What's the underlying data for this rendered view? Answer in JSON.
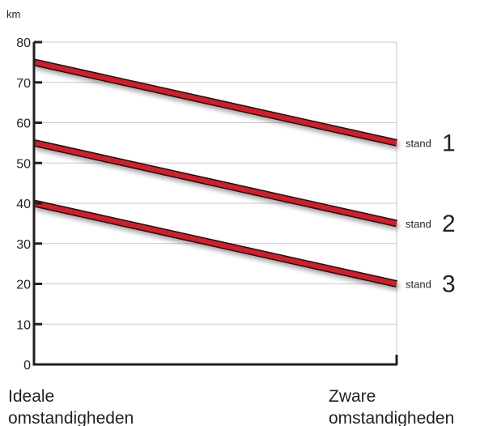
{
  "chart_data": {
    "type": "line",
    "ylabel": "km",
    "ylim": [
      0,
      80
    ],
    "yticks": [
      0,
      10,
      20,
      30,
      40,
      50,
      60,
      70,
      80
    ],
    "grid": true,
    "categories": [
      [
        "Ideale",
        "omstandigheden"
      ],
      [
        "Zware",
        "omstandigheden"
      ]
    ],
    "series": [
      {
        "name": "stand 1",
        "word": "stand",
        "number": "1",
        "values": [
          75,
          55
        ]
      },
      {
        "name": "stand 2",
        "word": "stand",
        "number": "2",
        "values": [
          55,
          35
        ]
      },
      {
        "name": "stand 3",
        "word": "stand",
        "number": "3",
        "values": [
          40,
          20
        ]
      }
    ],
    "colors": {
      "line": "#c8202e",
      "line_edge": "#2a0a0c",
      "axis": "#231f20",
      "grid": "#c9c9c9"
    }
  }
}
